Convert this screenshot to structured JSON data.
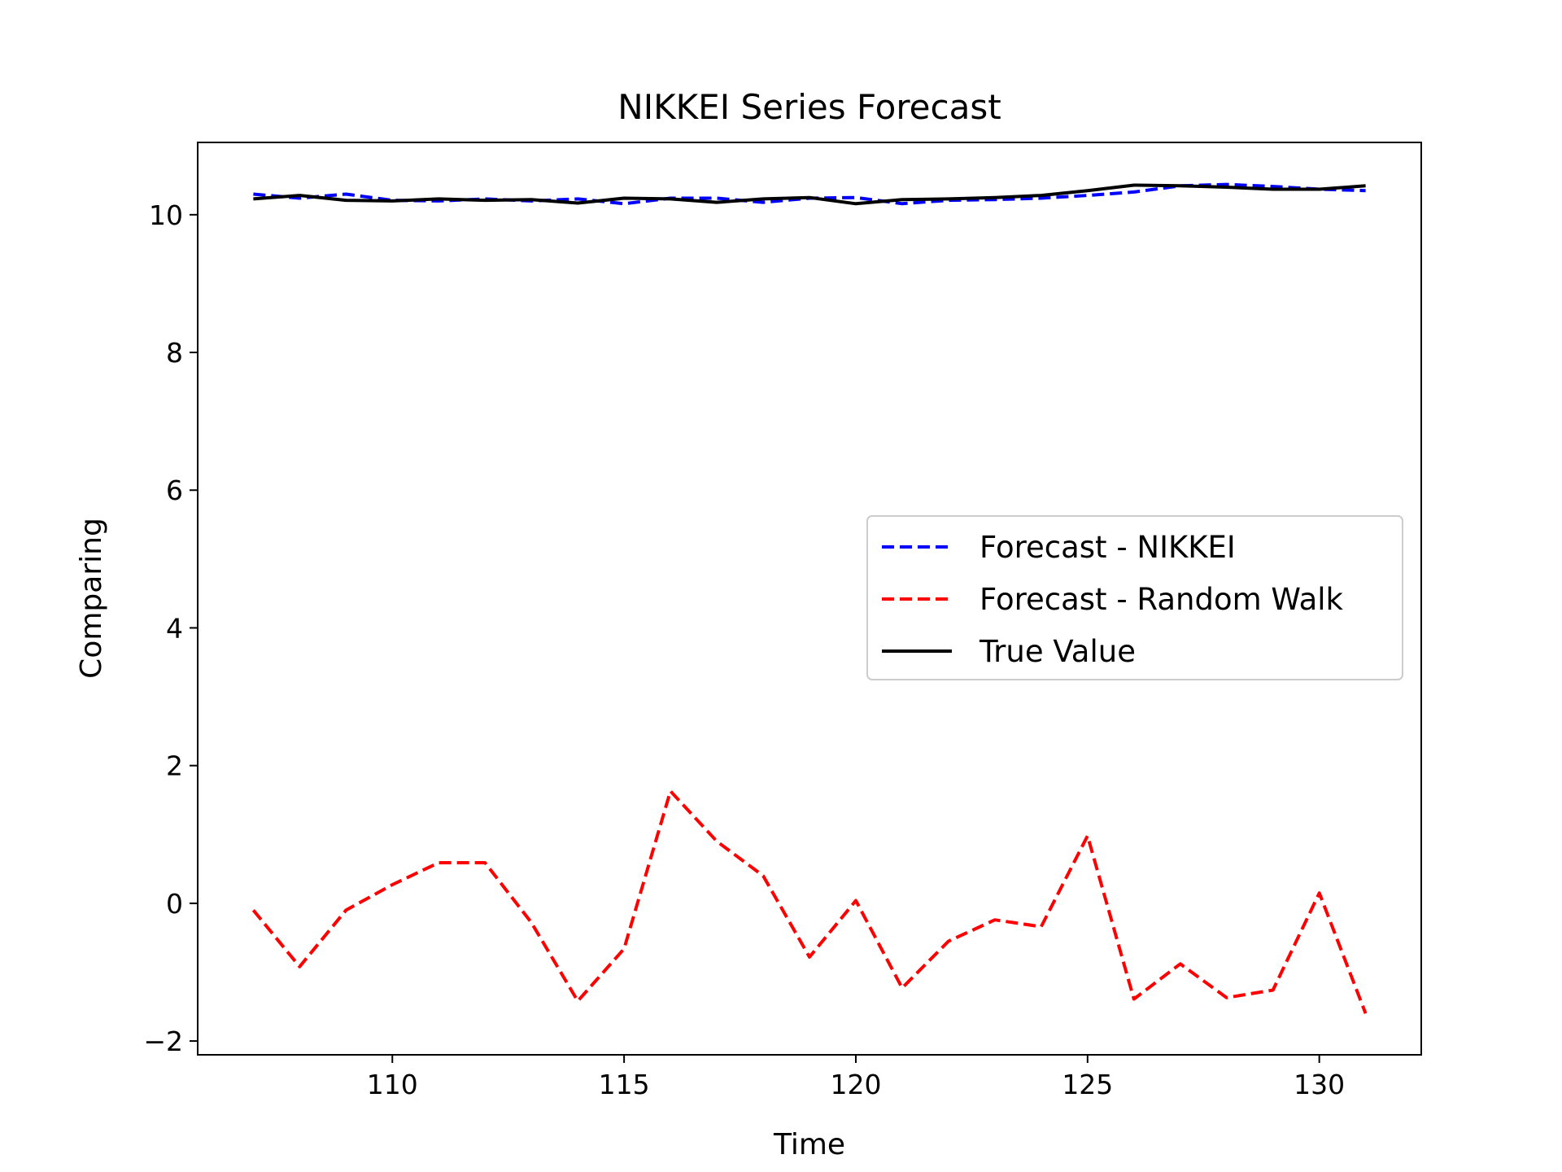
{
  "chart_data": {
    "type": "line",
    "title": "NIKKEI Series Forecast",
    "xlabel": "Time",
    "ylabel": "Comparing",
    "xlim": [
      105.8,
      132.2
    ],
    "ylim": [
      -2.2,
      11.05
    ],
    "x_ticks": [
      110,
      115,
      120,
      125,
      130
    ],
    "x_tick_labels": [
      "110",
      "115",
      "120",
      "125",
      "130"
    ],
    "y_ticks": [
      -2,
      0,
      2,
      4,
      6,
      8,
      10
    ],
    "y_tick_labels": [
      "−2",
      "0",
      "2",
      "4",
      "6",
      "8",
      "10"
    ],
    "grid": false,
    "legend_position": "center-right",
    "x": [
      107,
      108,
      109,
      110,
      111,
      112,
      113,
      114,
      115,
      116,
      117,
      118,
      119,
      120,
      121,
      122,
      123,
      124,
      125,
      126,
      127,
      128,
      129,
      130,
      131
    ],
    "series": [
      {
        "name": "Forecast - NIKKEI",
        "color": "#0000ff",
        "style": "dashed",
        "values": [
          10.3,
          10.24,
          10.3,
          10.21,
          10.2,
          10.23,
          10.2,
          10.23,
          10.16,
          10.24,
          10.24,
          10.18,
          10.24,
          10.25,
          10.16,
          10.21,
          10.22,
          10.24,
          10.28,
          10.33,
          10.42,
          10.44,
          10.41,
          10.37,
          10.35
        ]
      },
      {
        "name": "Forecast - Random Walk",
        "color": "#ff0000",
        "style": "dashed",
        "values": [
          -0.1,
          -0.92,
          -0.1,
          0.27,
          0.59,
          0.59,
          -0.28,
          -1.42,
          -0.66,
          1.63,
          0.9,
          0.4,
          -0.78,
          0.04,
          -1.23,
          -0.55,
          -0.24,
          -0.34,
          0.98,
          -1.39,
          -0.88,
          -1.37,
          -1.26,
          0.15,
          -1.6
        ]
      },
      {
        "name": "True Value",
        "color": "#000000",
        "style": "solid",
        "values": [
          10.23,
          10.28,
          10.21,
          10.2,
          10.23,
          10.21,
          10.22,
          10.17,
          10.24,
          10.23,
          10.18,
          10.23,
          10.25,
          10.16,
          10.22,
          10.23,
          10.25,
          10.28,
          10.35,
          10.43,
          10.42,
          10.4,
          10.37,
          10.37,
          10.42
        ]
      }
    ]
  }
}
